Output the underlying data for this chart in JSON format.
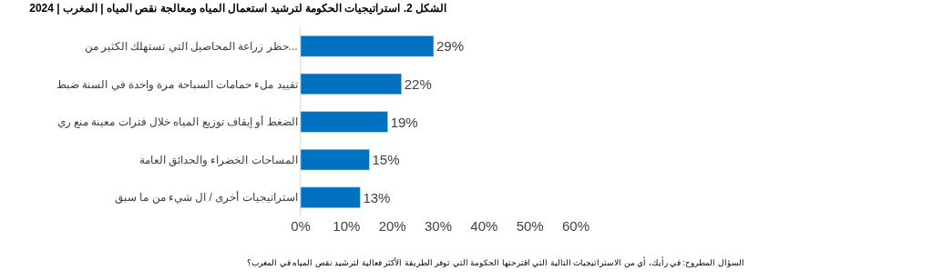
{
  "chart_data": {
    "type": "bar",
    "orientation": "horizontal",
    "title": "الشكل 2. استراتيجيات الحكومة لترشيد استعمال المياه ومعالجة نقص المياه | المغرب | 2024",
    "categories": [
      "حظر زراعة المحاصيل التي تستهلك الكثير من...",
      "تقييد ملء حمامات السباحة مرة واحدة في السنة ضبط",
      "الضغط أو إيقاف توزيع المياه خلال فترات معينة منع ري",
      "المساحات الخضراء والحدائق العامة",
      "استراتيجيات أخرى / ال شيء من ما سبق"
    ],
    "values": [
      29,
      22,
      19,
      15,
      13
    ],
    "value_labels": [
      "29%",
      "22%",
      "19%",
      "15%",
      "13%"
    ],
    "color": "#0070c0",
    "xlim": [
      0,
      60
    ],
    "xticks": [
      {
        "value": 0,
        "label": "0%"
      },
      {
        "value": 10,
        "label": "10%"
      },
      {
        "value": 20,
        "label": "20%"
      },
      {
        "value": 30,
        "label": "30%"
      },
      {
        "value": 40,
        "label": "40%"
      },
      {
        "value": 50,
        "label": "50%"
      },
      {
        "value": 60,
        "label": "60%"
      }
    ],
    "grid": false,
    "legend": false,
    "annotations": [
      "السؤال المطروح: في رأيك، أي من الاستراتيجيات التالية التي اقترحتها الحكومة التي توفر الطريقة الأكثر فعالية لترشيد نقص المياه في المغرب؟"
    ]
  }
}
